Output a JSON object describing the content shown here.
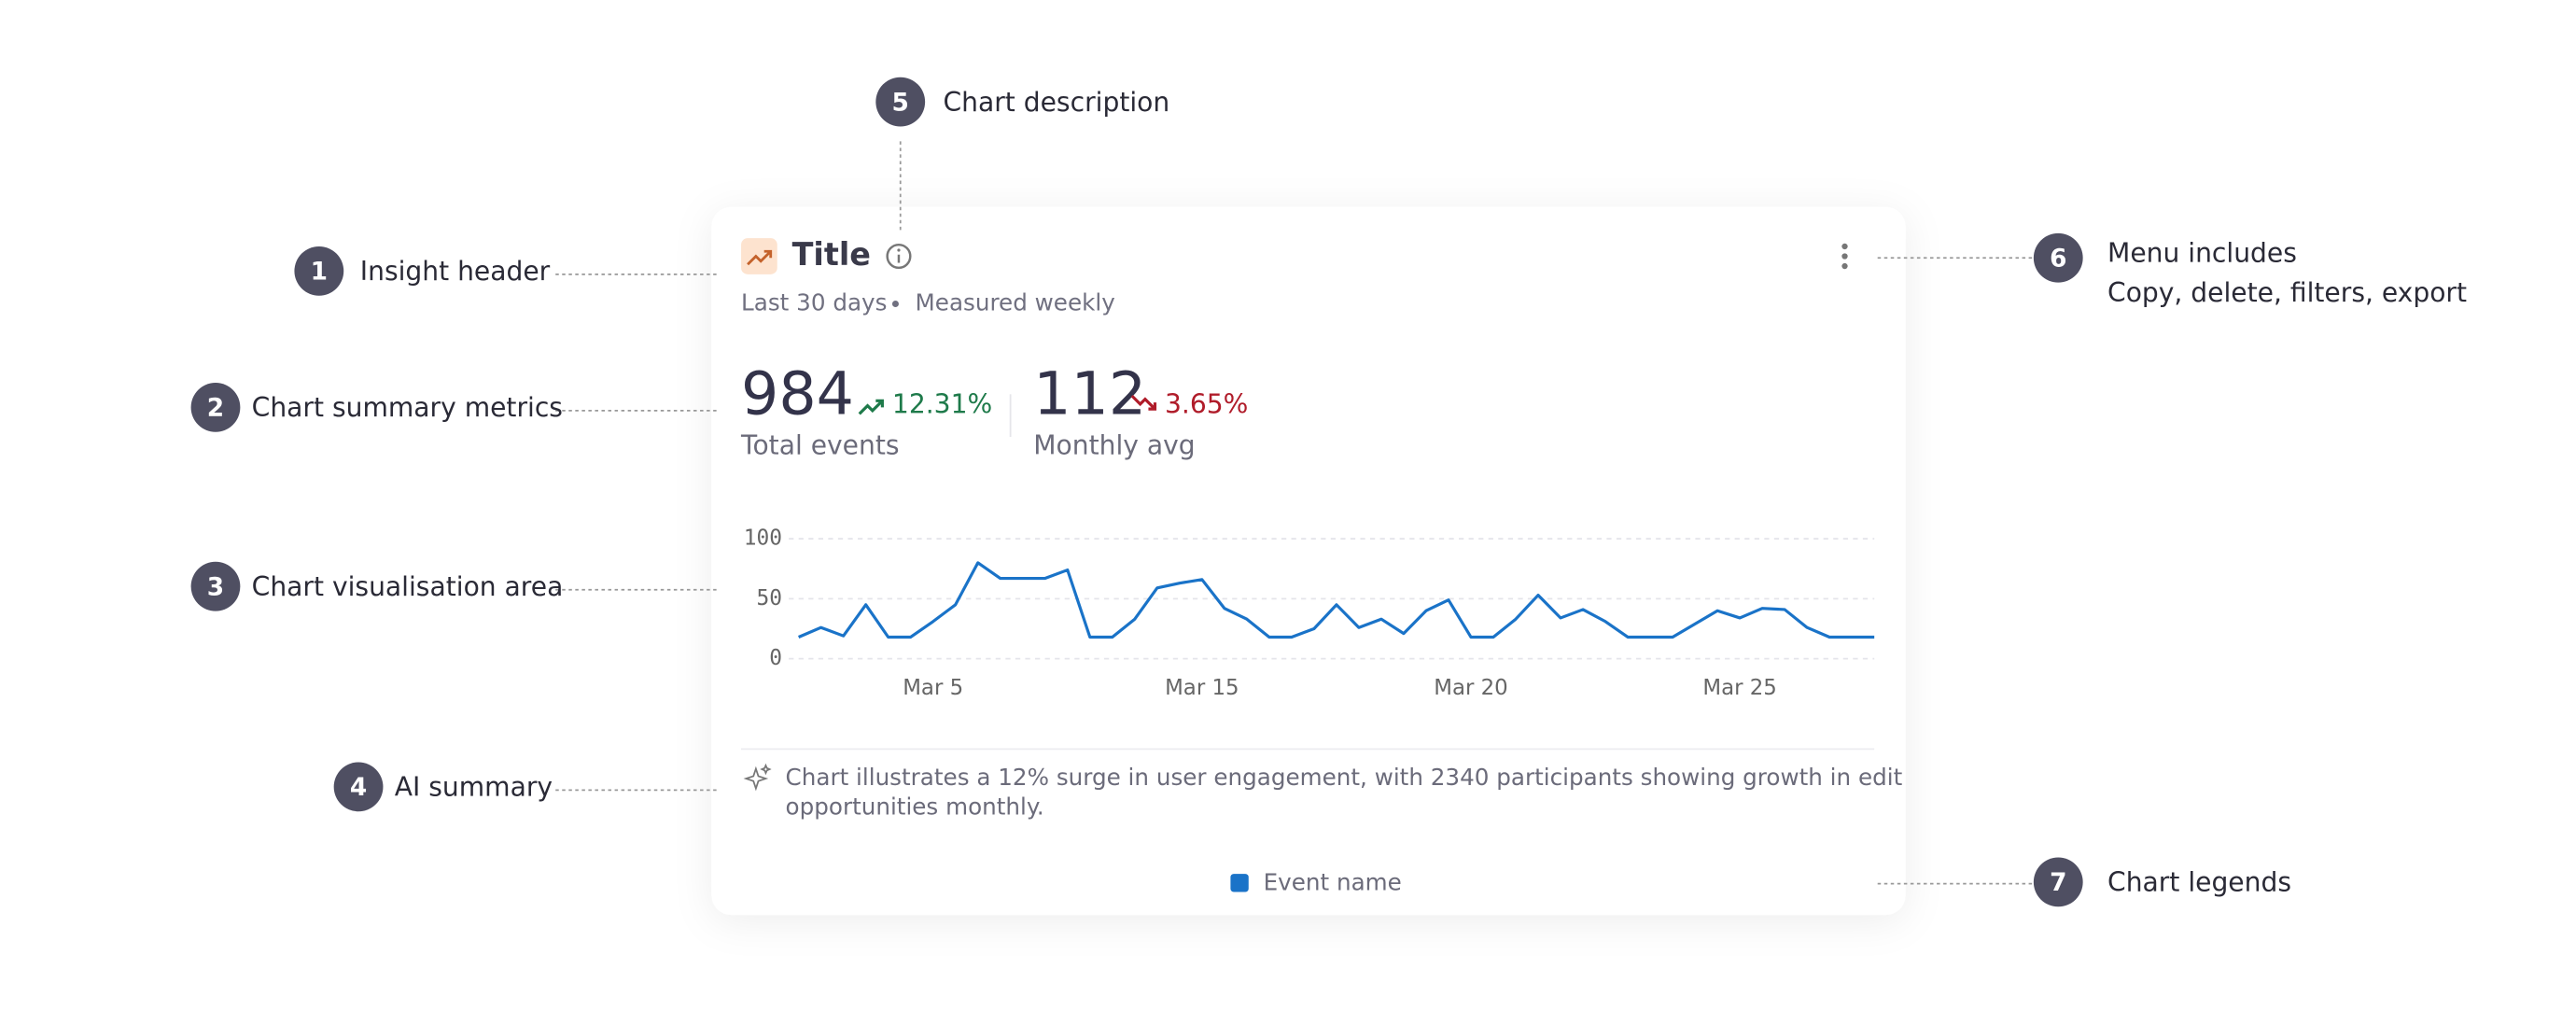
{
  "annotations": [
    {
      "number": 1,
      "lines": [
        "Insight header"
      ]
    },
    {
      "number": 2,
      "lines": [
        "Chart summary metrics"
      ]
    },
    {
      "number": 3,
      "lines": [
        "Chart visualisation area"
      ]
    },
    {
      "number": 4,
      "lines": [
        "AI summary"
      ]
    },
    {
      "number": 5,
      "lines": [
        "Chart description"
      ]
    },
    {
      "number": 6,
      "lines": [
        "Menu includes",
        "Copy, delete, filters, export"
      ]
    },
    {
      "number": 7,
      "lines": [
        "Chart legends"
      ]
    }
  ],
  "card": {
    "title": "Title",
    "period": "Last 30 days",
    "frequency": "Measured weekly",
    "metrics": [
      {
        "value": 984,
        "change": "12.31%",
        "direction": "up",
        "label": "Total events"
      },
      {
        "value": 112,
        "change": "3.65%",
        "direction": "down",
        "label": "Monthly avg"
      }
    ],
    "chart": {
      "type": "line",
      "categories": [
        null,
        null,
        null,
        null,
        null,
        null,
        "Mar 5",
        null,
        null,
        null,
        null,
        null,
        null,
        null,
        null,
        null,
        null,
        null,
        "Mar 15",
        null,
        null,
        null,
        null,
        null,
        null,
        null,
        null,
        null,
        null,
        null,
        "Mar 20",
        null,
        null,
        null,
        null,
        null,
        null,
        null,
        null,
        null,
        null,
        null,
        "Mar 25",
        null,
        null,
        null,
        null,
        null,
        null
      ],
      "series": [
        {
          "name": "Event name",
          "color": "#1a73c8",
          "values": [
            18,
            26,
            19,
            45,
            18,
            18,
            31,
            45,
            80,
            67,
            67,
            67,
            74,
            18,
            18,
            33,
            59,
            63,
            66,
            42,
            33,
            18,
            18,
            25,
            45,
            26,
            33,
            21,
            40,
            49,
            18,
            18,
            33,
            53,
            34,
            41,
            31,
            18,
            18,
            18,
            29,
            40,
            34,
            42,
            41,
            26,
            18,
            18,
            18
          ]
        }
      ],
      "ylim": [
        0,
        100
      ],
      "yticks": [
        0,
        50,
        100
      ],
      "grid": true
    },
    "ai_summary": [
      "Chart illustrates a 12% surge in user engagement, with 2340 participants showing growth in edit",
      "opportunities monthly."
    ]
  }
}
